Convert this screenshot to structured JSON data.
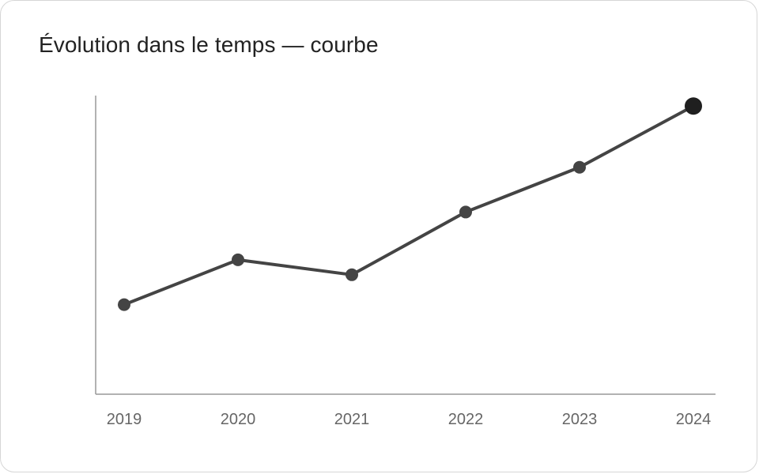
{
  "chart_data": {
    "type": "line",
    "title": "Évolution dans le temps — courbe",
    "x": [
      "2019",
      "2020",
      "2021",
      "2022",
      "2023",
      "2024"
    ],
    "series": [
      {
        "values": [
          30,
          45,
          40,
          61,
          76,
          96.5
        ]
      }
    ],
    "ylim": [
      0,
      100
    ],
    "xlabel": "",
    "ylabel": "",
    "grid": false,
    "legend": "none",
    "highlight_last_point": true,
    "colors": {
      "line": "#444444",
      "point": "#444444",
      "last_point": "#1f1f1f",
      "axis": "#999999",
      "tick_text": "#666666",
      "title_text": "#222222"
    }
  }
}
